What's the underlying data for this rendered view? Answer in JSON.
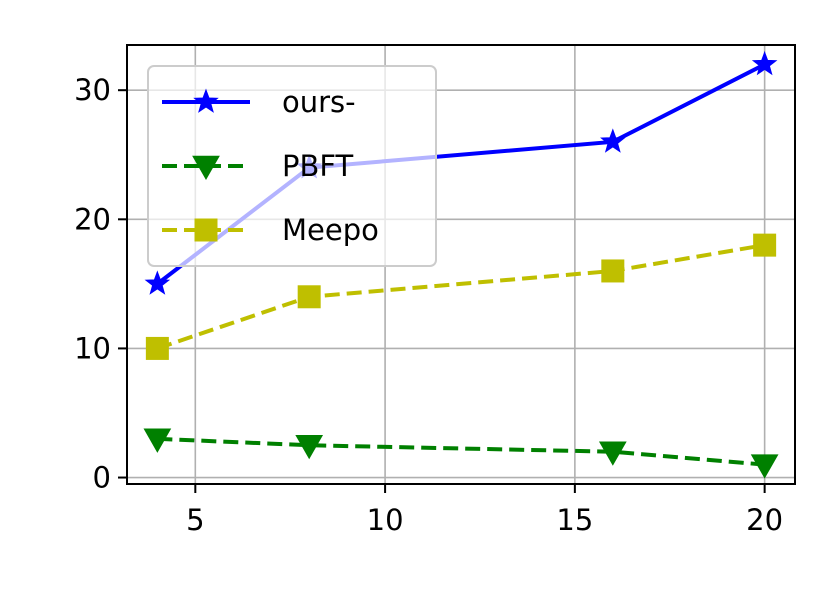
{
  "chart_data": {
    "type": "line",
    "title": "",
    "xlabel": "",
    "ylabel": "",
    "x": [
      4,
      8,
      16,
      20
    ],
    "xlim": [
      3.2,
      20.8
    ],
    "ylim": [
      -0.5,
      33.5
    ],
    "xticks": [
      5,
      10,
      15,
      20
    ],
    "yticks": [
      0,
      10,
      20,
      30
    ],
    "grid": true,
    "legend_position": "top-left",
    "series": [
      {
        "name": "ours-",
        "values": [
          15,
          24,
          26,
          32
        ],
        "color": "#0000ff",
        "linestyle": "solid",
        "marker": "star"
      },
      {
        "name": "PBFT",
        "values": [
          3,
          2.5,
          2,
          1
        ],
        "color": "#008000",
        "linestyle": "dashed",
        "marker": "triangle-down"
      },
      {
        "name": "Meepo",
        "values": [
          10,
          14,
          16,
          18
        ],
        "color": "#bfbf00",
        "linestyle": "dashed",
        "marker": "square"
      }
    ]
  }
}
